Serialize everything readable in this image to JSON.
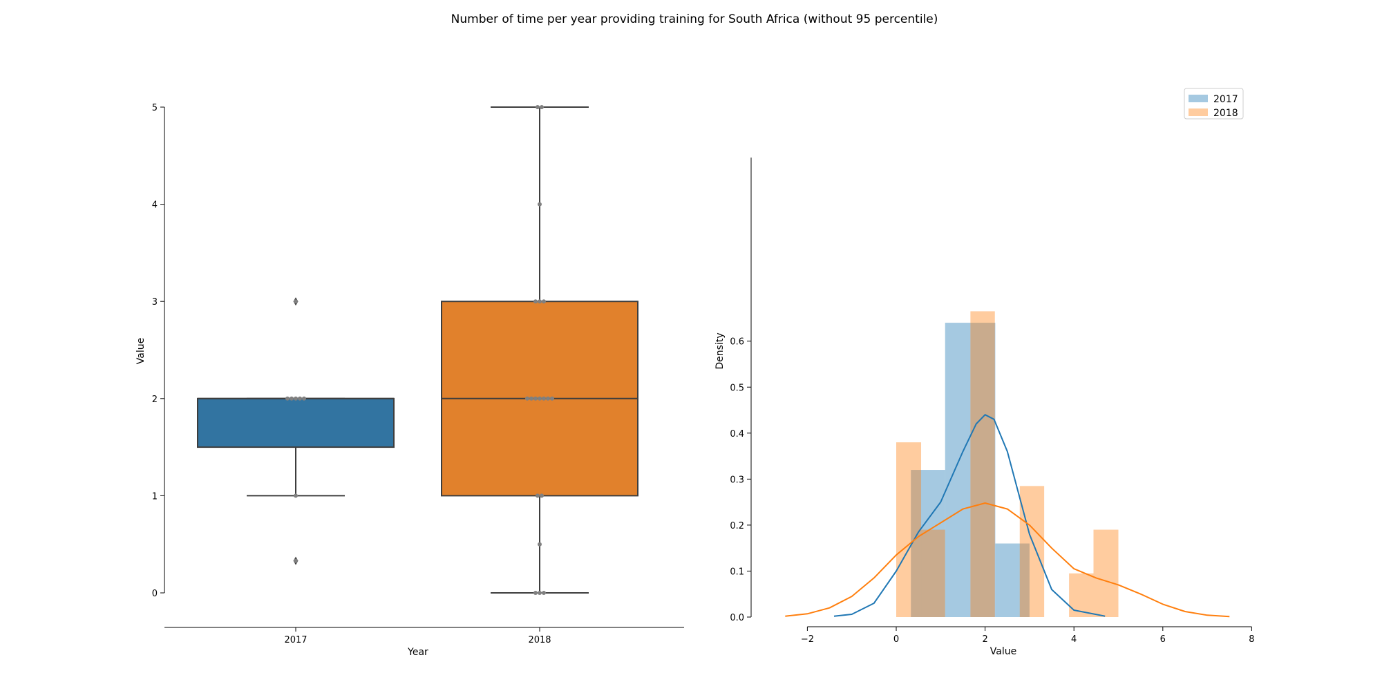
{
  "title": "Number of time per year providing training for South Africa (without 95 percentile)",
  "colors": {
    "y2017": "#1f77b4",
    "y2018": "#ff7f0e",
    "box2017": "#3274a1",
    "box2018": "#e1812c",
    "swarm": "#808080",
    "line": "#3d3d3d"
  },
  "chart_data": [
    {
      "type": "box",
      "title": "",
      "xlabel": "Year",
      "ylabel": "Value",
      "categories": [
        "2017",
        "2018"
      ],
      "ylim": [
        -0.35,
        5
      ],
      "yticks": [
        "0",
        "1",
        "2",
        "3",
        "4",
        "5"
      ],
      "boxes": [
        {
          "name": "2017",
          "q1": 1.5,
          "median": 2,
          "q3": 2,
          "whisker_low": 1,
          "whisker_high": 2,
          "fliers": [
            0.33,
            3
          ]
        },
        {
          "name": "2018",
          "q1": 1,
          "median": 2,
          "q3": 3,
          "whisker_low": 0,
          "whisker_high": 5,
          "fliers": []
        }
      ],
      "points": [
        {
          "name": "2017",
          "values": [
            2,
            2,
            2,
            2,
            2,
            1,
            0.33,
            3
          ]
        },
        {
          "name": "2018",
          "values": [
            5,
            5,
            4,
            3,
            3,
            3,
            2,
            2,
            2,
            2,
            2,
            2,
            2,
            1,
            1,
            0.5,
            0,
            0,
            0
          ]
        }
      ]
    },
    {
      "type": "histogram",
      "title": "",
      "xlabel": "Value",
      "ylabel": "Density",
      "xlim": [
        -3.2,
        8
      ],
      "ylim": [
        0,
        0.66
      ],
      "xticks": [
        "−2",
        "0",
        "2",
        "4",
        "6",
        "8"
      ],
      "yticks": [
        "0.0",
        "0.1",
        "0.2",
        "0.3",
        "0.4",
        "0.5",
        "0.6"
      ],
      "legend": {
        "position": "top-right",
        "entries": [
          "2017",
          "2018"
        ]
      },
      "series": [
        {
          "name": "2017",
          "bins": [
            [
              0.33,
              1.1,
              0.32
            ],
            [
              1.1,
              1.67,
              0.64
            ],
            [
              1.67,
              2.23,
              0.64
            ],
            [
              2.23,
              3.0,
              0.16
            ]
          ],
          "kde": [
            [
              -1.4,
              0.002
            ],
            [
              -1.0,
              0.006
            ],
            [
              -0.5,
              0.03
            ],
            [
              0.0,
              0.1
            ],
            [
              0.5,
              0.185
            ],
            [
              1.0,
              0.25
            ],
            [
              1.5,
              0.36
            ],
            [
              1.8,
              0.42
            ],
            [
              2.0,
              0.44
            ],
            [
              2.2,
              0.43
            ],
            [
              2.5,
              0.36
            ],
            [
              3.0,
              0.18
            ],
            [
              3.5,
              0.06
            ],
            [
              4.0,
              0.015
            ],
            [
              4.7,
              0.002
            ]
          ]
        },
        {
          "name": "2018",
          "bins": [
            [
              0.0,
              0.56,
              0.38
            ],
            [
              0.56,
              1.1,
              0.19
            ],
            [
              1.67,
              2.22,
              0.665
            ],
            [
              2.78,
              3.33,
              0.285
            ],
            [
              3.89,
              4.44,
              0.095
            ],
            [
              4.44,
              5.0,
              0.19
            ]
          ],
          "kde": [
            [
              -2.5,
              0.002
            ],
            [
              -2.0,
              0.007
            ],
            [
              -1.5,
              0.02
            ],
            [
              -1.0,
              0.045
            ],
            [
              -0.5,
              0.085
            ],
            [
              0.0,
              0.135
            ],
            [
              0.5,
              0.175
            ],
            [
              1.0,
              0.205
            ],
            [
              1.5,
              0.235
            ],
            [
              2.0,
              0.248
            ],
            [
              2.5,
              0.235
            ],
            [
              3.0,
              0.2
            ],
            [
              3.5,
              0.15
            ],
            [
              4.0,
              0.105
            ],
            [
              4.5,
              0.085
            ],
            [
              5.0,
              0.07
            ],
            [
              5.5,
              0.05
            ],
            [
              6.0,
              0.028
            ],
            [
              6.5,
              0.012
            ],
            [
              7.0,
              0.004
            ],
            [
              7.5,
              0.001
            ]
          ]
        }
      ]
    }
  ]
}
